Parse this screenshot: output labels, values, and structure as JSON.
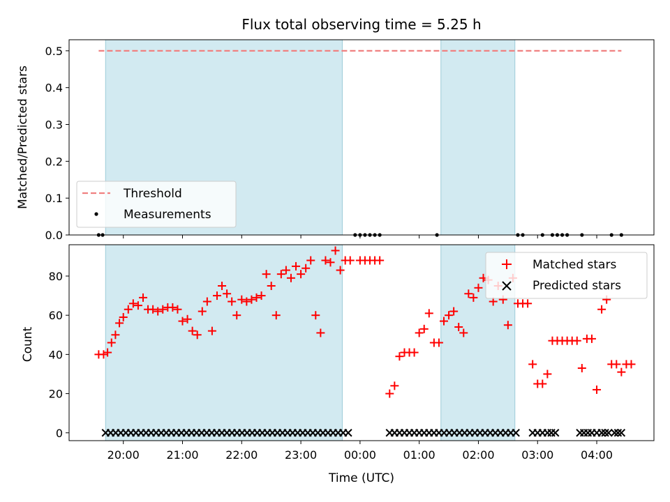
{
  "chart_data": [
    {
      "type": "scatter",
      "title": "Flux total observing time = 5.25 h",
      "ylabel": "Matched/Predicted stars",
      "xlabel": "",
      "ylim": [
        0,
        0.53
      ],
      "yticks": [
        "0.0",
        "0.1",
        "0.2",
        "0.3",
        "0.4",
        "0.5"
      ],
      "threshold": {
        "name": "Threshold",
        "value": 0.5,
        "x_start": "19:35",
        "x_end": "04:25",
        "color": "#f08080"
      },
      "shaded_intervals": [
        [
          "19:42",
          "23:42"
        ],
        [
          "01:22",
          "02:37"
        ]
      ],
      "shade_color": "#add8e6",
      "measurements": {
        "name": "Measurements",
        "y": 0,
        "x": [
          "19:35",
          "19:39",
          "23:55",
          "00:00",
          "00:05",
          "00:10",
          "00:15",
          "00:20",
          "01:18",
          "02:40",
          "02:45",
          "03:05",
          "03:15",
          "03:20",
          "03:25",
          "03:30",
          "03:45",
          "04:15",
          "04:25"
        ]
      },
      "legend": [
        "Threshold",
        "Measurements"
      ],
      "legend_position": "lower-left"
    },
    {
      "type": "scatter",
      "ylabel": "Count",
      "xlabel": "Time (UTC)",
      "ylim": [
        -4,
        96
      ],
      "yticks": [
        "0",
        "20",
        "40",
        "60",
        "80"
      ],
      "xticks": [
        "20:00",
        "21:00",
        "22:00",
        "23:00",
        "00:00",
        "01:00",
        "02:00",
        "03:00",
        "04:00"
      ],
      "shaded_intervals": [
        [
          "19:42",
          "23:42"
        ],
        [
          "01:22",
          "02:37"
        ]
      ],
      "series": [
        {
          "name": "Matched stars",
          "marker": "+",
          "color": "#ff0000",
          "points": [
            [
              "19:35",
              40
            ],
            [
              "19:40",
              40
            ],
            [
              "19:44",
              41
            ],
            [
              "19:48",
              46
            ],
            [
              "19:52",
              50
            ],
            [
              "19:56",
              56
            ],
            [
              "20:00",
              59
            ],
            [
              "20:05",
              63
            ],
            [
              "20:10",
              66
            ],
            [
              "20:15",
              65
            ],
            [
              "20:20",
              69
            ],
            [
              "20:25",
              63
            ],
            [
              "20:30",
              63
            ],
            [
              "20:35",
              62
            ],
            [
              "20:40",
              63
            ],
            [
              "20:45",
              64
            ],
            [
              "20:50",
              64
            ],
            [
              "20:55",
              63
            ],
            [
              "21:00",
              57
            ],
            [
              "21:05",
              58
            ],
            [
              "21:10",
              52
            ],
            [
              "21:15",
              50
            ],
            [
              "21:20",
              62
            ],
            [
              "21:25",
              67
            ],
            [
              "21:30",
              52
            ],
            [
              "21:35",
              70
            ],
            [
              "21:40",
              75
            ],
            [
              "21:45",
              71
            ],
            [
              "21:50",
              67
            ],
            [
              "21:55",
              60
            ],
            [
              "22:00",
              68
            ],
            [
              "22:05",
              67
            ],
            [
              "22:10",
              68
            ],
            [
              "22:15",
              69
            ],
            [
              "22:20",
              70
            ],
            [
              "22:25",
              81
            ],
            [
              "22:30",
              75
            ],
            [
              "22:35",
              60
            ],
            [
              "22:40",
              81
            ],
            [
              "22:45",
              83
            ],
            [
              "22:50",
              79
            ],
            [
              "22:55",
              85
            ],
            [
              "23:00",
              81
            ],
            [
              "23:05",
              84
            ],
            [
              "23:10",
              88
            ],
            [
              "23:15",
              60
            ],
            [
              "23:20",
              51
            ],
            [
              "23:25",
              88
            ],
            [
              "23:30",
              87
            ],
            [
              "23:35",
              93
            ],
            [
              "23:40",
              83
            ],
            [
              "23:45",
              88
            ],
            [
              "23:50",
              88
            ],
            [
              "24:00",
              88
            ],
            [
              "24:05",
              88
            ],
            [
              "24:10",
              88
            ],
            [
              "24:15",
              88
            ],
            [
              "24:20",
              88
            ],
            [
              "24:30",
              20
            ],
            [
              "24:35",
              24
            ],
            [
              "24:40",
              39
            ],
            [
              "24:45",
              41
            ],
            [
              "24:50",
              41
            ],
            [
              "24:55",
              41
            ],
            [
              "25:00",
              51
            ],
            [
              "25:05",
              53
            ],
            [
              "25:10",
              61
            ],
            [
              "25:15",
              46
            ],
            [
              "25:20",
              46
            ],
            [
              "25:25",
              57
            ],
            [
              "25:30",
              60
            ],
            [
              "25:35",
              62
            ],
            [
              "25:40",
              54
            ],
            [
              "25:45",
              51
            ],
            [
              "25:50",
              71
            ],
            [
              "25:55",
              69
            ],
            [
              "26:00",
              74
            ],
            [
              "26:05",
              79
            ],
            [
              "26:10",
              78
            ],
            [
              "26:15",
              67
            ],
            [
              "26:20",
              75
            ],
            [
              "26:25",
              68
            ],
            [
              "26:30",
              55
            ],
            [
              "26:35",
              79
            ],
            [
              "26:40",
              66
            ],
            [
              "26:45",
              66
            ],
            [
              "26:50",
              66
            ],
            [
              "26:55",
              35
            ],
            [
              "27:00",
              25
            ],
            [
              "27:05",
              25
            ],
            [
              "27:10",
              30
            ],
            [
              "27:15",
              47
            ],
            [
              "27:20",
              47
            ],
            [
              "27:25",
              47
            ],
            [
              "27:30",
              47
            ],
            [
              "27:35",
              47
            ],
            [
              "27:40",
              47
            ],
            [
              "27:45",
              33
            ],
            [
              "27:50",
              48
            ],
            [
              "27:55",
              48
            ],
            [
              "28:00",
              22
            ],
            [
              "28:05",
              63
            ],
            [
              "28:10",
              68
            ],
            [
              "28:15",
              35
            ],
            [
              "28:20",
              35
            ],
            [
              "28:25",
              31
            ],
            [
              "28:30",
              35
            ],
            [
              "28:35",
              35
            ]
          ]
        },
        {
          "name": "Predicted stars",
          "marker": "x",
          "color": "#000000",
          "y": 0,
          "x_ranges": [
            [
              "19:42",
              "23:48",
              49
            ],
            [
              "24:30",
              "25:15",
              10
            ],
            [
              "25:20",
              "26:38",
              16
            ],
            [
              "26:55",
              "27:05",
              3
            ],
            [
              "27:10",
              "27:18",
              3
            ],
            [
              "27:43",
              "27:51",
              3
            ],
            [
              "27:55",
              "28:00",
              2
            ],
            [
              "28:05",
              "28:12",
              3
            ],
            [
              "28:18",
              "28:25",
              3
            ]
          ]
        }
      ],
      "legend": [
        "Matched stars",
        "Predicted stars"
      ],
      "legend_position": "top-right"
    }
  ]
}
